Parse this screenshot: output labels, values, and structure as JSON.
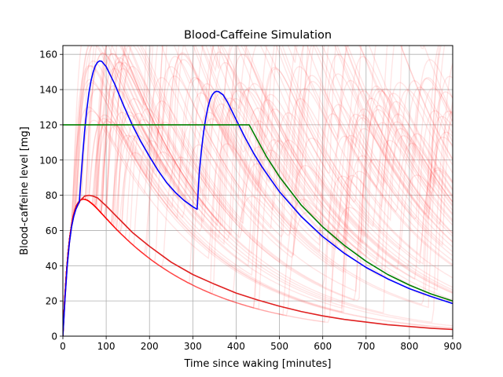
{
  "chart_data": {
    "type": "line",
    "title": "Blood-Caffeine Simulation",
    "xlabel": "Time since waking [minutes]",
    "ylabel": "Blood-caffeine level [mg]",
    "xlim": [
      0,
      900
    ],
    "ylim": [
      0,
      165
    ],
    "xticks": [
      0,
      100,
      200,
      300,
      400,
      500,
      600,
      700,
      800,
      900
    ],
    "yticks": [
      0,
      20,
      40,
      60,
      80,
      100,
      120,
      140,
      160
    ],
    "grid": true,
    "colors": {
      "background_series": "#ff0000",
      "red_series": "#e02020",
      "blue_series": "#0000ff",
      "green_series": "#008000",
      "grid": "#b0b0b0"
    },
    "series": [
      {
        "color": "red",
        "points": [
          [
            0,
            0
          ],
          [
            5,
            22
          ],
          [
            10,
            40
          ],
          [
            15,
            53
          ],
          [
            20,
            62
          ],
          [
            25,
            68
          ],
          [
            30,
            72
          ],
          [
            40,
            77
          ],
          [
            50,
            79.5
          ],
          [
            60,
            80
          ],
          [
            70,
            79.5
          ],
          [
            80,
            78.5
          ],
          [
            100,
            74
          ],
          [
            120,
            69
          ],
          [
            140,
            64
          ],
          [
            160,
            59
          ],
          [
            180,
            55
          ],
          [
            200,
            51
          ],
          [
            250,
            42
          ],
          [
            300,
            35
          ],
          [
            350,
            29.5
          ],
          [
            400,
            24.5
          ],
          [
            450,
            20.5
          ],
          [
            500,
            17
          ],
          [
            550,
            14
          ],
          [
            600,
            11.5
          ],
          [
            650,
            9.5
          ],
          [
            700,
            8
          ],
          [
            750,
            6.5
          ],
          [
            800,
            5.5
          ],
          [
            850,
            4.5
          ],
          [
            900,
            3.8
          ]
        ]
      },
      {
        "color": "blue",
        "points": [
          [
            0,
            0
          ],
          [
            5,
            22
          ],
          [
            10,
            40
          ],
          [
            15,
            53
          ],
          [
            20,
            62
          ],
          [
            25,
            68
          ],
          [
            30,
            72
          ],
          [
            35,
            75
          ],
          [
            38,
            76
          ],
          [
            42,
            90
          ],
          [
            46,
            104
          ],
          [
            50,
            116
          ],
          [
            55,
            128
          ],
          [
            60,
            138
          ],
          [
            65,
            145
          ],
          [
            70,
            150
          ],
          [
            75,
            153.5
          ],
          [
            80,
            155.5
          ],
          [
            85,
            156.3
          ],
          [
            90,
            156
          ],
          [
            100,
            153
          ],
          [
            120,
            143
          ],
          [
            140,
            131
          ],
          [
            160,
            120
          ],
          [
            180,
            110.5
          ],
          [
            200,
            102
          ],
          [
            220,
            94
          ],
          [
            240,
            87
          ],
          [
            260,
            81.5
          ],
          [
            280,
            77
          ],
          [
            300,
            73.5
          ],
          [
            310,
            72
          ],
          [
            315,
            93
          ],
          [
            320,
            106
          ],
          [
            325,
            116
          ],
          [
            330,
            124
          ],
          [
            335,
            130
          ],
          [
            340,
            134.5
          ],
          [
            345,
            137
          ],
          [
            350,
            138.5
          ],
          [
            355,
            139
          ],
          [
            360,
            138.8
          ],
          [
            370,
            137
          ],
          [
            380,
            133
          ],
          [
            400,
            123
          ],
          [
            420,
            113
          ],
          [
            440,
            104
          ],
          [
            460,
            96
          ],
          [
            480,
            89
          ],
          [
            500,
            82
          ],
          [
            550,
            68
          ],
          [
            600,
            56.5
          ],
          [
            650,
            47
          ],
          [
            700,
            39
          ],
          [
            750,
            32.5
          ],
          [
            800,
            27
          ],
          [
            850,
            22.5
          ],
          [
            900,
            18.5
          ]
        ]
      },
      {
        "color": "green",
        "points": [
          [
            0,
            120
          ],
          [
            420,
            120
          ],
          [
            430,
            120
          ],
          [
            450,
            111
          ],
          [
            470,
            102
          ],
          [
            500,
            90.5
          ],
          [
            550,
            74.5
          ],
          [
            600,
            62
          ],
          [
            650,
            51.5
          ],
          [
            700,
            42.5
          ],
          [
            750,
            35
          ],
          [
            800,
            29
          ],
          [
            850,
            24
          ],
          [
            900,
            20
          ]
        ]
      }
    ]
  }
}
